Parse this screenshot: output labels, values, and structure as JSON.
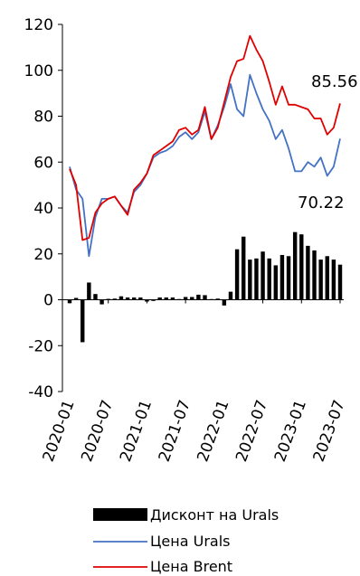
{
  "chart_data": {
    "type": "bar+line",
    "title": "",
    "xlabel": "",
    "ylabel": "",
    "ylim": [
      -40,
      120
    ],
    "yticks": [
      120,
      100,
      80,
      60,
      40,
      20,
      0,
      -20,
      -40
    ],
    "xtick_labels": [
      "2020-01",
      "2020-07",
      "2021-01",
      "2021-07",
      "2022-01",
      "2022-07",
      "2023-01",
      "2023-07"
    ],
    "grid": false,
    "legend_position": "bottom",
    "months": [
      "2020-01",
      "2020-02",
      "2020-03",
      "2020-04",
      "2020-05",
      "2020-06",
      "2020-07",
      "2020-08",
      "2020-09",
      "2020-10",
      "2020-11",
      "2020-12",
      "2021-01",
      "2021-02",
      "2021-03",
      "2021-04",
      "2021-05",
      "2021-06",
      "2021-07",
      "2021-08",
      "2021-09",
      "2021-10",
      "2021-11",
      "2021-12",
      "2022-01",
      "2022-02",
      "2022-03",
      "2022-04",
      "2022-05",
      "2022-06",
      "2022-07",
      "2022-08",
      "2022-09",
      "2022-10",
      "2022-11",
      "2022-12",
      "2023-01",
      "2023-02",
      "2023-03",
      "2023-04",
      "2023-05",
      "2023-06",
      "2023-07"
    ],
    "series": [
      {
        "name": "Дисконт на Urals",
        "kind": "bar",
        "color": "#000000",
        "values": [
          -1.5,
          0.8,
          -18.5,
          7.5,
          2.5,
          -2,
          0.4,
          0.5,
          1.5,
          1,
          1,
          1,
          -0.8,
          -0.5,
          1,
          1,
          1,
          0.3,
          1.2,
          1.2,
          2.2,
          2,
          0.3,
          0.5,
          -2.5,
          3.5,
          22,
          27.5,
          17.5,
          18,
          21,
          18,
          15,
          19.5,
          19,
          29.5,
          28.5,
          23.5,
          21.5,
          17.5,
          19,
          17.5,
          15.3
        ]
      },
      {
        "name": "Цена Urals",
        "kind": "line",
        "color": "#4472C4",
        "values": [
          58,
          48,
          44,
          19,
          36,
          44,
          44,
          45,
          41,
          38,
          47,
          50,
          55,
          62,
          64,
          65,
          67,
          71,
          73,
          70,
          73,
          82,
          70,
          76,
          84,
          94,
          83,
          80,
          98,
          90,
          83,
          78,
          70,
          74,
          66,
          56,
          56,
          60,
          58,
          62,
          54,
          58,
          70.22
        ]
      },
      {
        "name": "Цена Brent",
        "kind": "line",
        "color": "#E00000",
        "values": [
          57,
          50,
          26,
          27,
          38,
          42,
          44,
          45,
          41,
          37,
          48,
          51,
          55,
          63,
          65,
          67,
          69,
          74,
          75,
          72,
          74,
          84,
          70,
          75,
          86,
          97,
          104,
          105,
          115,
          109,
          104,
          95,
          85,
          93,
          85,
          85,
          84,
          83,
          79,
          79,
          72,
          75,
          85.56
        ]
      }
    ],
    "annotations": [
      "85.56",
      "70.22"
    ]
  },
  "legend": {
    "discount_label": "Дисконт на Urals",
    "urals_label": "Цена Urals",
    "brent_label": "Цена Brent"
  }
}
